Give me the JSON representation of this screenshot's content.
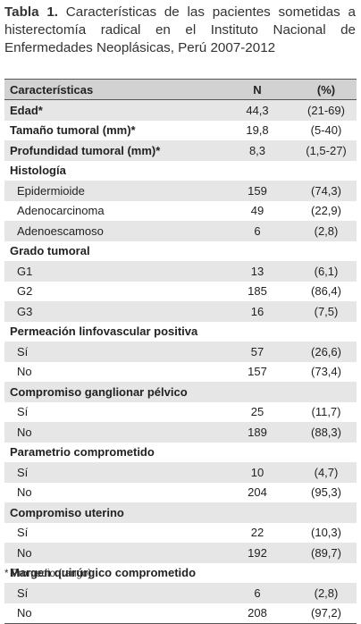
{
  "caption": {
    "label": "Tabla 1.",
    "text": "Características de las pacientes sometidas a histerectomía radical en el Instituto Nacional de Enfermedades Neoplásicas, Perú 2007-2012"
  },
  "table": {
    "header": [
      "Características",
      "N",
      "(%)"
    ],
    "summary": [
      [
        "Edad*",
        "44,3",
        "(21-69)"
      ],
      [
        "Tamaño tumoral (mm)*",
        "19,8",
        "(5-40)"
      ],
      [
        "Profundidad tumoral (mm)*",
        "8,3",
        "(1,5-27)"
      ]
    ],
    "groups": [
      {
        "title": "Histología",
        "rows": [
          [
            "Epidermioide",
            "159",
            "(74,3)"
          ],
          [
            "Adenocarcinoma",
            "49",
            "(22,9)"
          ],
          [
            "Adenoescamoso",
            "6",
            "(2,8)"
          ]
        ]
      },
      {
        "title": "Grado tumoral",
        "rows": [
          [
            "G1",
            "13",
            "(6,1)"
          ],
          [
            "G2",
            "185",
            "(86,4)"
          ],
          [
            "G3",
            "16",
            "(7,5)"
          ]
        ]
      },
      {
        "title": "Permeación linfovascular positiva",
        "rows": [
          [
            "Sí",
            "57",
            "(26,6)"
          ],
          [
            "No",
            "157",
            "(73,4)"
          ]
        ]
      },
      {
        "title": "Compromiso ganglionar pélvico",
        "rows": [
          [
            "Sí",
            "25",
            "(11,7)"
          ],
          [
            "No",
            "189",
            "(88,3)"
          ]
        ]
      },
      {
        "title": "Parametrio comprometido",
        "rows": [
          [
            "Sí",
            "10",
            "(4,7)"
          ],
          [
            "No",
            "204",
            "(95,3)"
          ]
        ]
      },
      {
        "title": "Compromiso uterino",
        "rows": [
          [
            "Sí",
            "22",
            "(10,3)"
          ],
          [
            "No",
            "192",
            "(89,7)"
          ]
        ]
      },
      {
        "title": "Margen quirúrgico comprometido",
        "rows": [
          [
            "Sí",
            "6",
            "(2,8)"
          ],
          [
            "No",
            "208",
            "(97,2)"
          ]
        ]
      }
    ]
  },
  "footnote": "*   Promedio (rango)"
}
